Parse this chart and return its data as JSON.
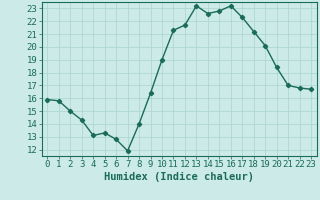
{
  "x": [
    0,
    1,
    2,
    3,
    4,
    5,
    6,
    7,
    8,
    9,
    10,
    11,
    12,
    13,
    14,
    15,
    16,
    17,
    18,
    19,
    20,
    21,
    22,
    23
  ],
  "y": [
    15.9,
    15.8,
    15.0,
    14.3,
    13.1,
    13.3,
    12.8,
    11.9,
    14.0,
    16.4,
    19.0,
    21.3,
    21.7,
    23.2,
    22.6,
    22.8,
    23.2,
    22.3,
    21.2,
    20.1,
    18.4,
    17.0,
    16.8,
    16.7
  ],
  "line_color": "#1a6b5a",
  "marker": "D",
  "marker_size": 2.2,
  "bg_color": "#cceae7",
  "grid_color": "#aad4cf",
  "xlabel": "Humidex (Indice chaleur)",
  "xlim": [
    -0.5,
    23.5
  ],
  "ylim": [
    11.5,
    23.5
  ],
  "xticks": [
    0,
    1,
    2,
    3,
    4,
    5,
    6,
    7,
    8,
    9,
    10,
    11,
    12,
    13,
    14,
    15,
    16,
    17,
    18,
    19,
    20,
    21,
    22,
    23
  ],
  "yticks": [
    12,
    13,
    14,
    15,
    16,
    17,
    18,
    19,
    20,
    21,
    22,
    23
  ],
  "tick_label_color": "#1a6b5a",
  "tick_label_fontsize": 6.5,
  "xlabel_fontsize": 7.5,
  "xlabel_fontweight": "bold",
  "xlabel_color": "#1a6b5a",
  "line_width": 1.0
}
